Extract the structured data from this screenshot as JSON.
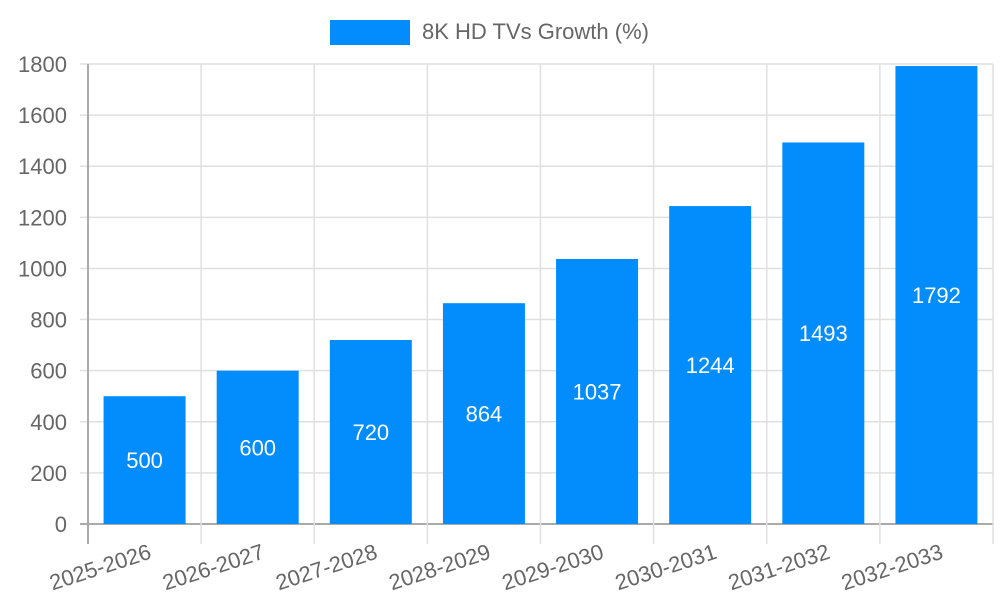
{
  "chart_data": {
    "type": "bar",
    "title": "",
    "xlabel": "",
    "ylabel": "",
    "categories": [
      "2025-2026",
      "2026-2027",
      "2027-2028",
      "2028-2029",
      "2029-2030",
      "2030-2031",
      "2031-2032",
      "2032-2033"
    ],
    "series": [
      {
        "name": "8K HD TVs Growth (%)",
        "values": [
          500,
          600,
          720,
          864,
          1037,
          1244,
          1493,
          1792
        ],
        "color": "#038cfc"
      }
    ],
    "ylim": [
      0,
      1800
    ],
    "yticks": [
      0,
      200,
      400,
      600,
      800,
      1000,
      1200,
      1400,
      1600,
      1800
    ],
    "grid": true,
    "legend_position": "top",
    "data_labels": true
  },
  "legend": {
    "label": "8K HD TVs Growth (%)",
    "color": "#038cfc"
  }
}
